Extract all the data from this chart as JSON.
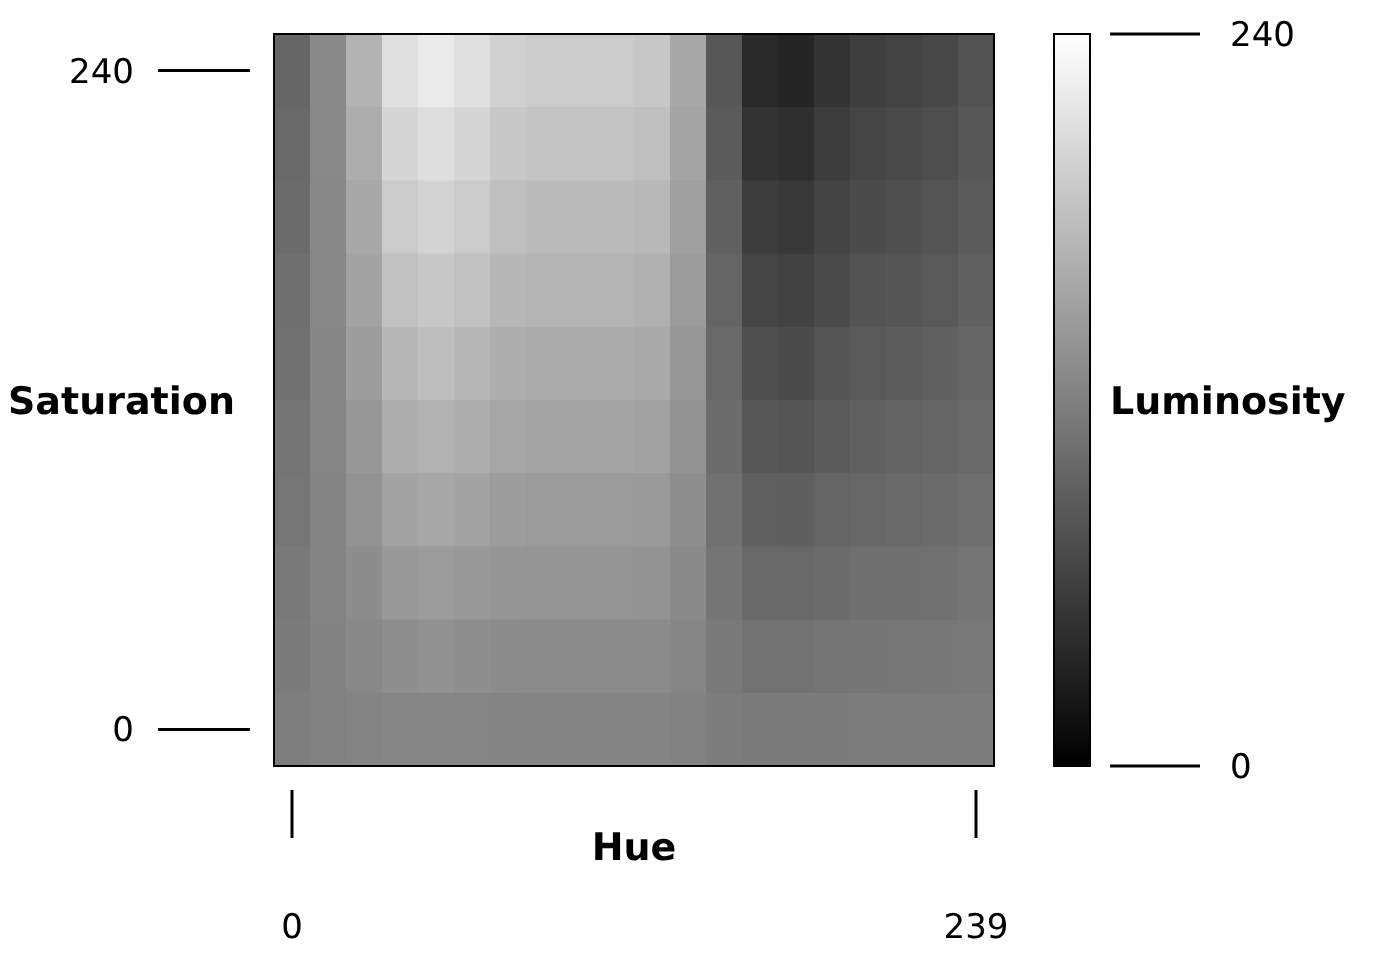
{
  "chart_data": {
    "type": "heatmap",
    "xlabel": "Hue",
    "ylabel": "Saturation",
    "clabel": "Luminosity",
    "categories": [
      "0",
      null,
      null,
      null,
      null,
      null,
      null,
      null,
      null,
      null,
      null,
      null,
      null,
      null,
      null,
      null,
      null,
      null,
      null,
      "239"
    ],
    "y_categories": [
      "240",
      null,
      null,
      null,
      null,
      null,
      null,
      null,
      null,
      "0"
    ],
    "clim": [
      0,
      240
    ],
    "cticks": [
      0,
      240
    ],
    "cells": [
      [
        96,
        130,
        168,
        210,
        220,
        210,
        196,
        191,
        191,
        191,
        187,
        158,
        82,
        39,
        35,
        49,
        58,
        63,
        68,
        77
      ],
      [
        99,
        129,
        163,
        201,
        209,
        201,
        188,
        184,
        184,
        184,
        180,
        154,
        86,
        48,
        44,
        56,
        65,
        69,
        73,
        82
      ],
      [
        101,
        128,
        158,
        191,
        199,
        191,
        180,
        176,
        176,
        176,
        173,
        150,
        90,
        56,
        53,
        64,
        71,
        75,
        79,
        86
      ],
      [
        104,
        127,
        153,
        182,
        188,
        182,
        172,
        169,
        169,
        169,
        166,
        146,
        94,
        65,
        62,
        71,
        78,
        81,
        84,
        91
      ],
      [
        106,
        126,
        148,
        172,
        178,
        172,
        164,
        161,
        161,
        161,
        159,
        142,
        98,
        73,
        71,
        79,
        84,
        87,
        90,
        95
      ],
      [
        109,
        125,
        143,
        163,
        167,
        163,
        156,
        154,
        154,
        154,
        152,
        138,
        102,
        82,
        80,
        86,
        91,
        93,
        95,
        100
      ],
      [
        111,
        124,
        138,
        153,
        157,
        153,
        148,
        146,
        146,
        146,
        145,
        134,
        106,
        90,
        89,
        94,
        97,
        99,
        101,
        104
      ],
      [
        114,
        123,
        133,
        144,
        146,
        144,
        140,
        139,
        139,
        139,
        138,
        130,
        110,
        99,
        98,
        101,
        104,
        105,
        106,
        109
      ],
      [
        116,
        122,
        128,
        134,
        136,
        134,
        132,
        131,
        131,
        131,
        131,
        126,
        114,
        107,
        107,
        109,
        110,
        111,
        112,
        113
      ],
      [
        119,
        121,
        123,
        125,
        125,
        125,
        124,
        124,
        124,
        124,
        124,
        122,
        118,
        116,
        116,
        116,
        117,
        117,
        117,
        118
      ]
    ]
  }
}
